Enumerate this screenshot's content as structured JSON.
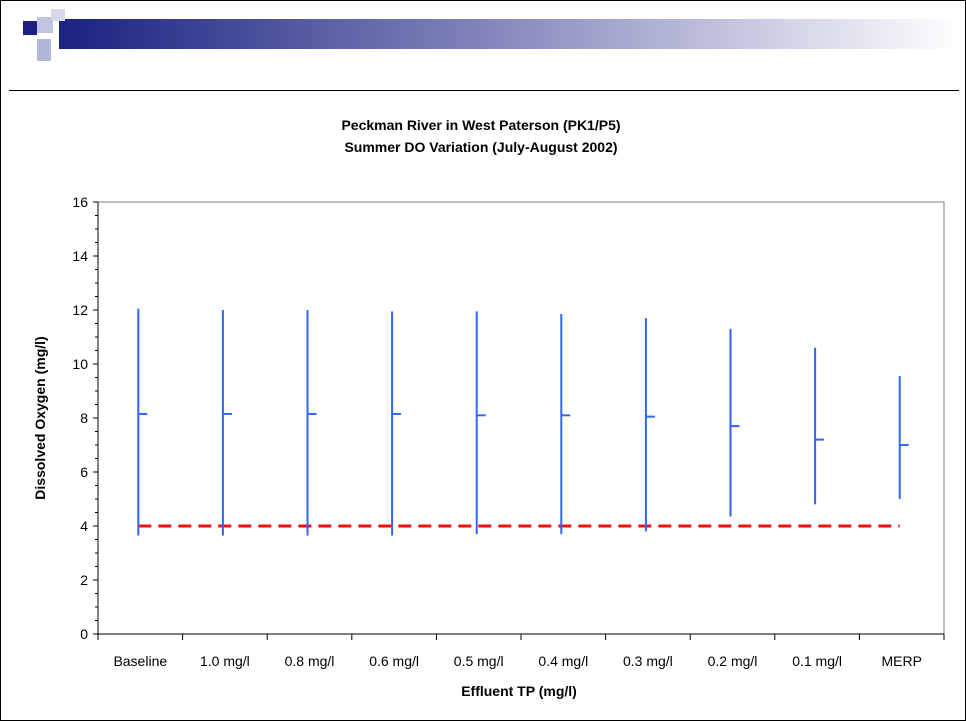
{
  "chart_data": {
    "type": "range",
    "title": "Peckman River in West Paterson (PK1/P5)",
    "subtitle": "Summer DO Variation (July-August 2002)",
    "xlabel": "Effluent TP (mg/l)",
    "ylabel": "Dissolved Oxygen (mg/l)",
    "ylim": [
      0,
      16
    ],
    "yticks": [
      "0",
      "2",
      "4",
      "6",
      "8",
      "10",
      "12",
      "14",
      "16"
    ],
    "categories": [
      "Baseline",
      "1.0 mg/l",
      "0.8 mg/l",
      "0.6 mg/l",
      "0.5 mg/l",
      "0.4 mg/l",
      "0.3 mg/l",
      "0.2 mg/l",
      "0.1 mg/l",
      "MERP"
    ],
    "max": [
      12.05,
      12.0,
      12.0,
      11.95,
      11.95,
      11.85,
      11.7,
      11.3,
      10.6,
      9.55
    ],
    "mean": [
      8.15,
      8.15,
      8.15,
      8.15,
      8.1,
      8.1,
      8.05,
      7.7,
      7.2,
      7.0
    ],
    "min": [
      3.65,
      3.65,
      3.65,
      3.65,
      3.7,
      3.7,
      3.8,
      4.35,
      4.8,
      5.0
    ],
    "standard": 4,
    "colors": {
      "range": "#3366ee",
      "standard": "#ee1111",
      "header_dark": "#1a2180"
    }
  }
}
